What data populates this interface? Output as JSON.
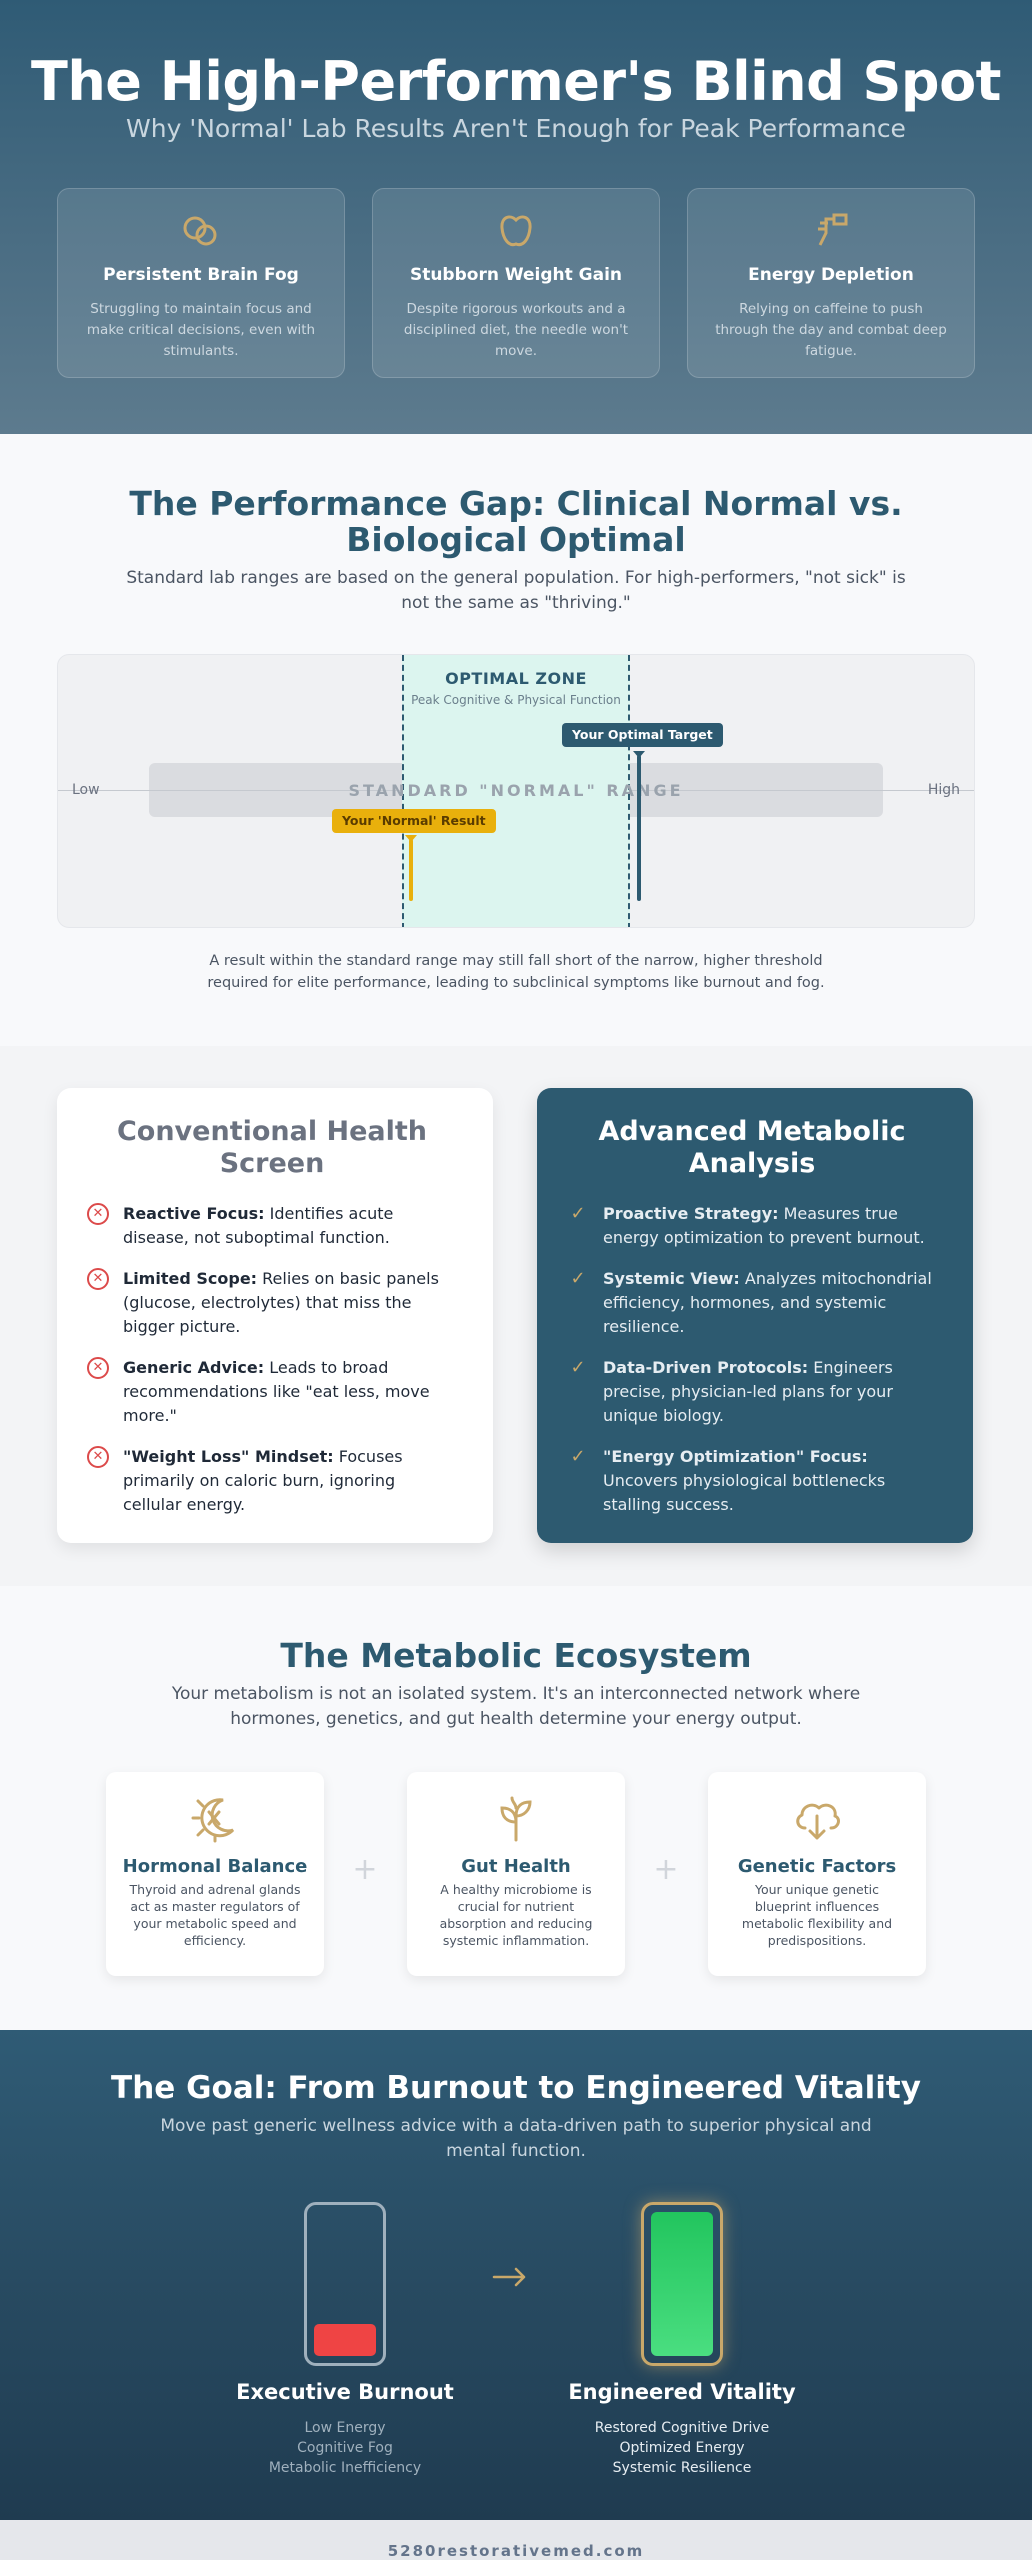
{
  "hero": {
    "title": "The High-Performer's Blind Spot",
    "subtitle": "Why 'Normal' Lab Results Aren't Enough for Peak Performance",
    "cards": [
      {
        "icon": "brain-icon",
        "title": "Persistent Brain Fog",
        "text": "Struggling to maintain focus and make critical decisions, even with stimulants."
      },
      {
        "icon": "apple-icon",
        "title": "Stubborn Weight Gain",
        "text": "Despite rigorous workouts and a disciplined diet, the needle won't move."
      },
      {
        "icon": "coffee-icon",
        "title": "Energy Depletion",
        "text": "Relying on caffeine to push through the day and combat deep fatigue."
      }
    ]
  },
  "gap": {
    "title": "The Performance Gap: Clinical Normal vs. Biological Optimal",
    "description": "Standard lab ranges are based on the general population. For high-performers, \"not sick\" is not the same as \"thriving.\"",
    "chart": {
      "optimal_zone_title": "OPTIMAL ZONE",
      "optimal_zone_subtitle": "Peak Cognitive & Physical Function",
      "standard_range_label": "STANDARD \"NORMAL\" RANGE",
      "low_label": "Low",
      "high_label": "High",
      "normal_result_label": "Your 'Normal' Result",
      "optimal_target_label": "Your Optimal Target"
    },
    "caption": "A result within the standard range may still fall short of the narrow, higher threshold required for elite performance, leading to subclinical symptoms like burnout and fog."
  },
  "comparison": {
    "conventional": {
      "title": "Conventional Health Screen",
      "items": [
        {
          "bold": "Reactive Focus:",
          "text": " Identifies acute disease, not suboptimal function."
        },
        {
          "bold": "Limited Scope:",
          "text": " Relies on basic panels (glucose, electrolytes) that miss the bigger picture."
        },
        {
          "bold": "Generic Advice:",
          "text": " Leads to broad recommendations like \"eat less, move more.\""
        },
        {
          "bold": "\"Weight Loss\" Mindset:",
          "text": " Focuses primarily on caloric burn, ignoring cellular energy."
        }
      ]
    },
    "advanced": {
      "title": "Advanced Metabolic Analysis",
      "items": [
        {
          "bold": "Proactive Strategy:",
          "text": " Measures true energy optimization to prevent burnout."
        },
        {
          "bold": "Systemic View:",
          "text": " Analyzes mitochondrial efficiency, hormones, and systemic resilience."
        },
        {
          "bold": "Data-Driven Protocols:",
          "text": " Engineers precise, physician-led plans for your unique biology."
        },
        {
          "bold": "\"Energy Optimization\" Focus:",
          "text": " Uncovers physiological bottlenecks stalling success."
        }
      ]
    }
  },
  "ecosystem": {
    "title": "The Metabolic Ecosystem",
    "description": "Your metabolism is not an isolated system. It's an interconnected network where hormones, genetics, and gut health determine your energy output.",
    "cards": [
      {
        "icon": "sun-moon-icon",
        "title": "Hormonal Balance",
        "text": "Thyroid and adrenal glands act as master regulators of your metabolic speed and efficiency."
      },
      {
        "icon": "sprout-icon",
        "title": "Gut Health",
        "text": "A healthy microbiome is crucial for nutrient absorption and reducing systemic inflammation."
      },
      {
        "icon": "cloud-download-icon",
        "title": "Genetic Factors",
        "text": "Your unique genetic blueprint influences metabolic flexibility and predispositions."
      }
    ],
    "plus": "+"
  },
  "goal": {
    "title": "The Goal: From Burnout to Engineered Vitality",
    "description": "Move past generic wellness advice with a data-driven path to superior physical and mental function.",
    "burnout": {
      "title": "Executive Burnout",
      "lines": [
        "Low Energy",
        "Cognitive Fog",
        "Metabolic Inefficiency"
      ],
      "charge_level": 0.22,
      "color": "#ef4444"
    },
    "vitality": {
      "title": "Engineered Vitality",
      "lines": [
        "Restored Cognitive Drive",
        "Optimized Energy",
        "Systemic Resilience"
      ],
      "charge_level": 1.0,
      "color": "#22c55e"
    },
    "arrow": "→"
  },
  "footer": {
    "site": "5280restorativemed.com"
  },
  "colors": {
    "primary": "#2d5a70",
    "accent": "#c9a86a",
    "warning": "#e9b00c",
    "danger": "#dc4a4a"
  }
}
